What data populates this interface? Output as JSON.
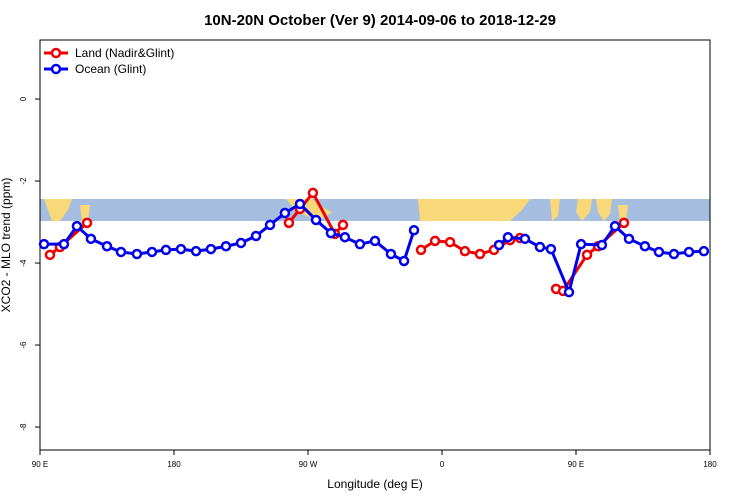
{
  "chart_data": {
    "type": "line",
    "title": "10N-20N October (Ver 9)   2014-09-06 to 2018-12-29",
    "x_label": "Longitude (deg E)",
    "y_label": "XCO2 - MLO trend (ppm)",
    "xlim": [
      90,
      540
    ],
    "ylim": [
      -8.56,
      1.44
    ],
    "xticks": [
      {
        "value": 90,
        "label": "90 E"
      },
      180,
      {
        "value": 270,
        "label": "90 W"
      },
      {
        "value": 360,
        "label": "0"
      },
      {
        "value": 450,
        "label": "90 E"
      },
      {
        "value": 540,
        "label": "180"
      }
    ],
    "yticks": [
      0,
      -2,
      -4,
      -6,
      -8
    ],
    "legend": "top-left",
    "series": [
      {
        "name": "Land (Nadir&Glint)",
        "color": "#ee0000",
        "x": [
          96.7,
          103.4,
          121.6,
          null,
          257.2,
          264.6,
          273.3,
          288.1,
          293.5,
          null,
          345.9,
          355.3,
          365.4,
          375.4,
          385.5,
          394.9,
          405.7,
          412.4,
          null,
          436.6,
          441.3,
          457.4,
          464.8,
          482.2
        ],
        "values": [
          -3.8,
          -3.61,
          -3.02,
          null,
          -3.02,
          -2.68,
          -2.29,
          -3.29,
          -3.07,
          null,
          -3.68,
          -3.46,
          -3.49,
          -3.71,
          -3.78,
          -3.68,
          -3.44,
          -3.39,
          null,
          -4.63,
          -4.68,
          -3.8,
          -3.59,
          -3.02
        ]
      },
      {
        "name": "Ocean (Glint)",
        "color": "#0000ee",
        "x": [
          92.7,
          106.1,
          114.8,
          124.2,
          135.0,
          144.4,
          155.1,
          165.2,
          174.6,
          184.7,
          194.8,
          204.8,
          214.9,
          225.0,
          235.1,
          244.5,
          254.5,
          264.6,
          275.4,
          285.4,
          294.8,
          304.9,
          315.0,
          325.7,
          334.5,
          341.2,
          null,
          398.3,
          404.3,
          415.7,
          425.8,
          433.2,
          445.3,
          453.4,
          467.4,
          476.2,
          485.6,
          496.3,
          505.7,
          515.8,
          525.9,
          535.9
        ],
        "values": [
          -3.54,
          -3.54,
          -3.1,
          -3.41,
          -3.59,
          -3.73,
          -3.78,
          -3.73,
          -3.68,
          -3.66,
          -3.71,
          -3.66,
          -3.59,
          -3.51,
          -3.34,
          -3.07,
          -2.78,
          -2.56,
          -2.95,
          -3.27,
          -3.37,
          -3.54,
          -3.46,
          -3.78,
          -3.95,
          -3.2,
          null,
          -3.56,
          -3.37,
          -3.41,
          -3.61,
          -3.66,
          -4.71,
          -3.54,
          -3.56,
          -3.1,
          -3.41,
          -3.59,
          -3.73,
          -3.78,
          -3.73,
          -3.71
        ]
      }
    ]
  }
}
